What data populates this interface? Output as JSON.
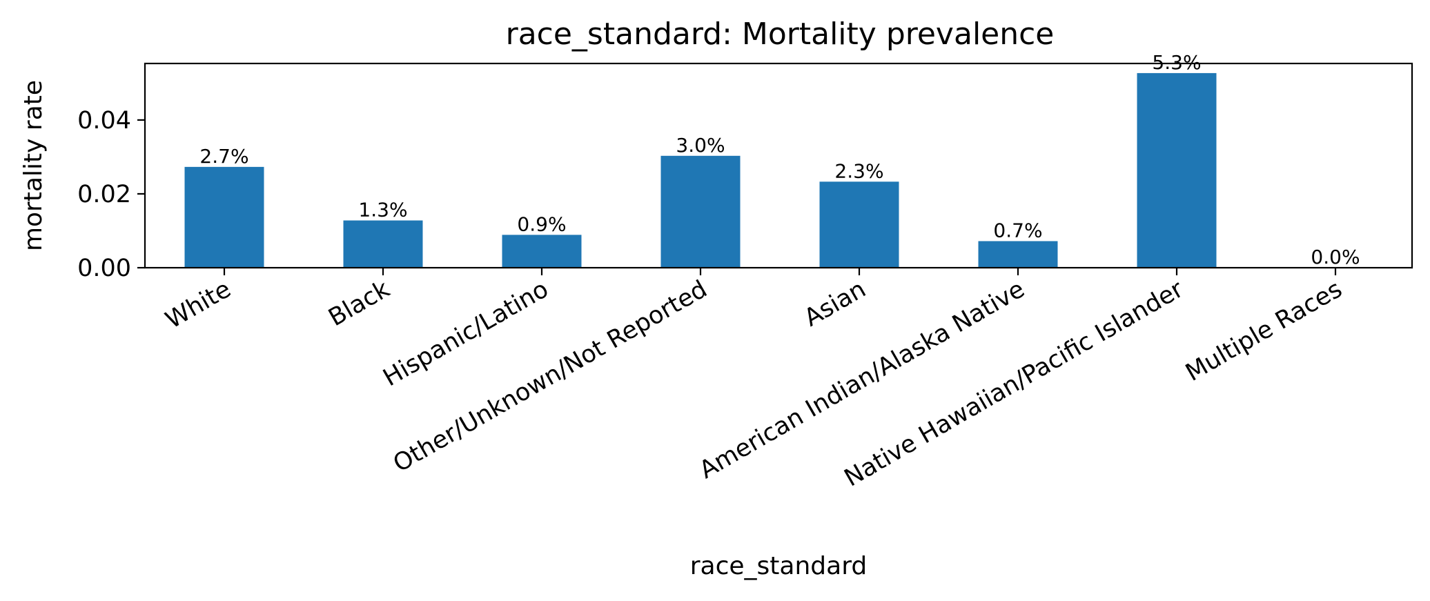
{
  "chart_data": {
    "type": "bar",
    "title": "race_standard: Mortality prevalence",
    "xlabel": "race_standard",
    "ylabel": "mortality rate",
    "categories": [
      "White",
      "Black",
      "Hispanic/Latino",
      "Other/Unknown/Not Reported",
      "Asian",
      "American Indian/Alaska Native",
      "Native Hawaiian/Pacific Islander",
      "Multiple Races"
    ],
    "values": [
      0.0273,
      0.0128,
      0.0089,
      0.0303,
      0.0233,
      0.0072,
      0.0527,
      0.0
    ],
    "data_labels": [
      "2.7%",
      "1.3%",
      "0.9%",
      "3.0%",
      "2.3%",
      "0.7%",
      "5.3%",
      "0.0%"
    ],
    "yticks": [
      0.0,
      0.02,
      0.04
    ],
    "ytick_labels": [
      "0.00",
      "0.02",
      "0.04"
    ],
    "ylim": [
      0,
      0.0553
    ],
    "grid": false,
    "bar_color": "#1f77b4"
  }
}
